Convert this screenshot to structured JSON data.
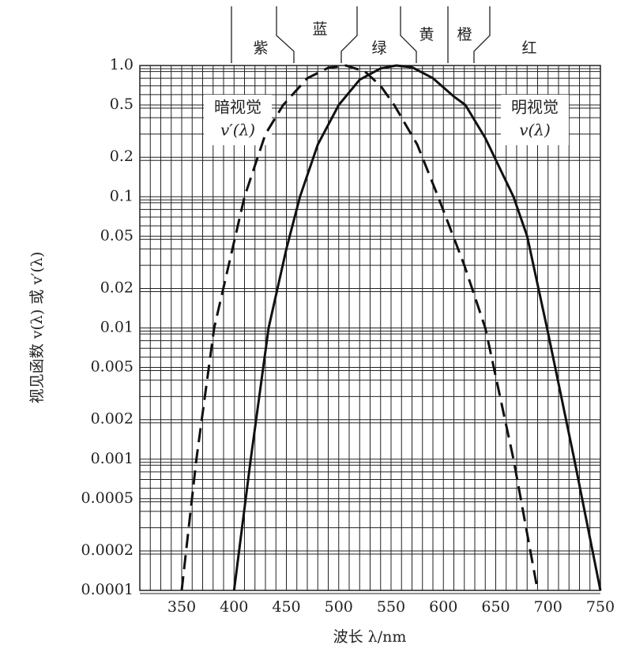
{
  "chart_data": {
    "type": "line",
    "y_label": "视见函数 v(λ) 或 v′(λ)",
    "x_label": "波长 λ/nm",
    "log_y": true,
    "grid": true,
    "xlim": [
      310,
      750
    ],
    "ylim": [
      0.0001,
      1
    ],
    "xticks": [
      350,
      400,
      450,
      500,
      550,
      600,
      650,
      700,
      750
    ],
    "yticks": [
      {
        "value": 1,
        "label": "1.0"
      },
      0.5,
      0.2,
      0.1,
      0.05,
      0.02,
      0.01,
      0.005,
      0.002,
      0.001,
      0.0005,
      0.0002,
      0.0001
    ],
    "x_minor_ticks": [
      310,
      320,
      330,
      340,
      360,
      370,
      380,
      390,
      410,
      420,
      430,
      440,
      460,
      470,
      480,
      490,
      510,
      520,
      530,
      540,
      560,
      570,
      580,
      590,
      610,
      620,
      630,
      640,
      660,
      670,
      680,
      690,
      710,
      720,
      730,
      740
    ],
    "y_minor_ticks": [
      0.0003,
      0.0004,
      0.0006,
      0.0007,
      0.0008,
      0.0009,
      0.003,
      0.004,
      0.006,
      0.007,
      0.008,
      0.009,
      0.03,
      0.04,
      0.06,
      0.07,
      0.08,
      0.09,
      0.3,
      0.4,
      0.6,
      0.7,
      0.8,
      0.9
    ],
    "band_labels": [
      "紫",
      "蓝",
      "绿",
      "黄",
      "橙",
      "红"
    ],
    "annotations": [
      "暗视觉",
      "v′(λ)",
      "明视觉",
      "v(λ)"
    ],
    "series": [
      {
        "name": "暗视觉 v′(λ)",
        "color": "#111111",
        "style": "dashed",
        "x": [
          350,
          364,
          381,
          410,
          430,
          447,
          470,
          490,
          507,
          525,
          540,
          553,
          575,
          595,
          620,
          640,
          667,
          690
        ],
        "values": [
          0.0001,
          0.001,
          0.01,
          0.1,
          0.3,
          0.5,
          0.8,
          0.96,
          1.0,
          0.9,
          0.7,
          0.5,
          0.25,
          0.1,
          0.03,
          0.01,
          0.001,
          0.0001
        ]
      },
      {
        "name": "明视觉 v(λ)",
        "color": "#111111",
        "style": "solid",
        "x": [
          400,
          416,
          433,
          450,
          463,
          480,
          500,
          520,
          540,
          555,
          570,
          590,
          610,
          621,
          640,
          667,
          680,
          699,
          725,
          750
        ],
        "values": [
          0.0001,
          0.001,
          0.01,
          0.04,
          0.1,
          0.25,
          0.5,
          0.78,
          0.95,
          1.0,
          0.97,
          0.8,
          0.58,
          0.5,
          0.28,
          0.1,
          0.05,
          0.01,
          0.001,
          0.0001
        ]
      }
    ]
  }
}
